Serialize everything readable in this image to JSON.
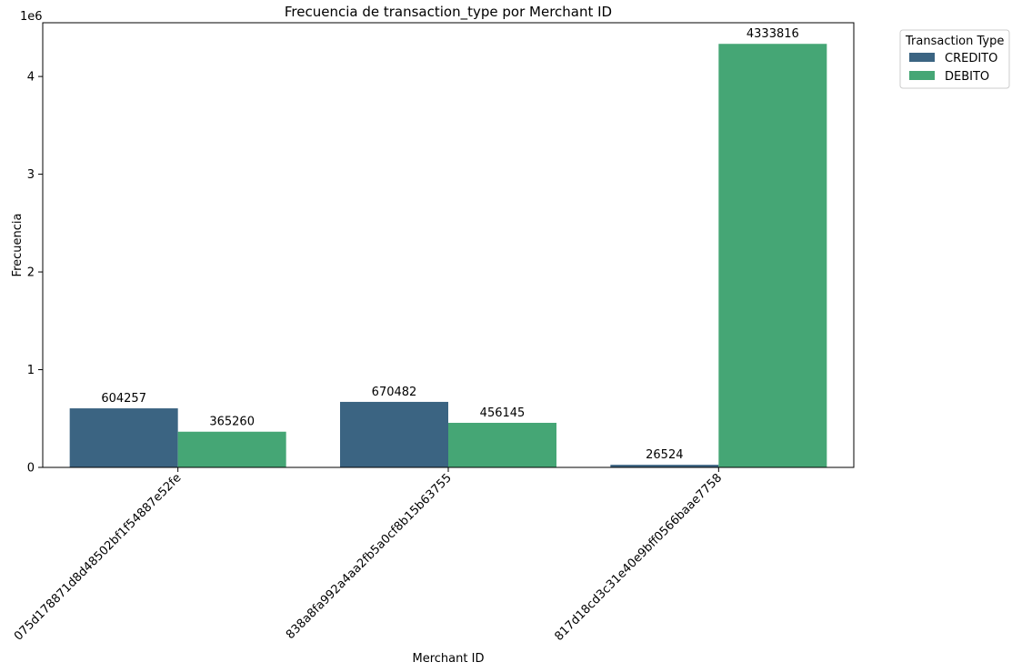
{
  "chart_data": {
    "type": "bar",
    "title": "Frecuencia de transaction_type por Merchant ID",
    "xlabel": "Merchant ID",
    "ylabel": "Frecuencia",
    "y_offset_text": "1e6",
    "y_scale_factor": 1000000,
    "ylim": [
      0,
      4550000
    ],
    "yticks": [
      0,
      1,
      2,
      3,
      4
    ],
    "categories": [
      "075d178871d8d48502bf1f54887e52fe",
      "838a8fa992a4aa2fb5a0cf8b15b63755",
      "817d18cd3c31e40e9bff0566baae7758"
    ],
    "series": [
      {
        "name": "CREDITO",
        "color": "#3b6482",
        "values": [
          604257,
          670482,
          26524
        ]
      },
      {
        "name": "DEBITO",
        "color": "#45a675",
        "values": [
          365260,
          456145,
          4333816
        ]
      }
    ],
    "legend": {
      "title": "Transaction Type",
      "placement": "outside-top-right"
    },
    "grid": false
  }
}
